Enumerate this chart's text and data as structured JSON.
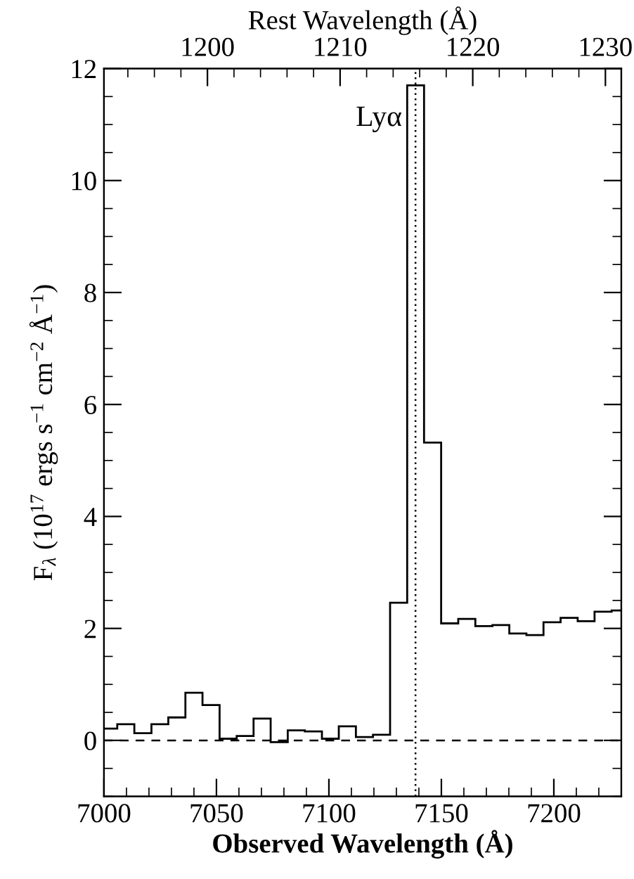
{
  "chart_data": {
    "type": "histogram",
    "xlabel": "Observed Wavelength (Å)",
    "x2label": "Rest Wavelength (Å)",
    "ylabel": "F$_{λ}$ (10$^{17}$ ergs s$^{−1}$ cm$^{−2}$ Å$^{−1}$)",
    "bins": [
      7000,
      7005.9,
      7013.5,
      7021.1,
      7028.6,
      7036.2,
      7043.8,
      7051.4,
      7059.0,
      7066.5,
      7074.1,
      7081.7,
      7089.3,
      7096.9,
      7104.4,
      7112.0,
      7119.6,
      7127.2,
      7134.8,
      7142.3,
      7149.9,
      7157.5,
      7165.1,
      7172.7,
      7180.2,
      7187.8,
      7195.4,
      7203.0,
      7210.6,
      7218.1,
      7225.7,
      7230
    ],
    "values": [
      0.21,
      0.29,
      0.13,
      0.29,
      0.41,
      0.85,
      0.63,
      0.03,
      0.08,
      0.39,
      -0.03,
      0.18,
      0.16,
      0.03,
      0.25,
      0.06,
      0.1,
      2.46,
      11.7,
      5.32,
      2.09,
      2.17,
      2.04,
      2.06,
      1.91,
      1.88,
      2.11,
      2.19,
      2.13,
      2.3,
      2.32
    ],
    "color": "#000000",
    "xlim": [
      7000,
      7230
    ],
    "xticks": [
      7000,
      7050,
      7100,
      7150,
      7200
    ],
    "x2lim": [
      1192.2,
      1231.2
    ],
    "x2ticks": [
      1200,
      1210,
      1220,
      1230
    ],
    "ylim": [
      -1,
      12
    ],
    "yticks": [
      0,
      2,
      4,
      6,
      8,
      10,
      12
    ],
    "ref_lines": [
      {
        "axis": "x",
        "value": 7138.5,
        "label": "Lyα",
        "line_style": "dotted",
        "color": "#000000"
      },
      {
        "axis": "y",
        "value": 0,
        "line_style": "dashed",
        "color": "#000000"
      }
    ],
    "grid": false,
    "legend": false
  }
}
